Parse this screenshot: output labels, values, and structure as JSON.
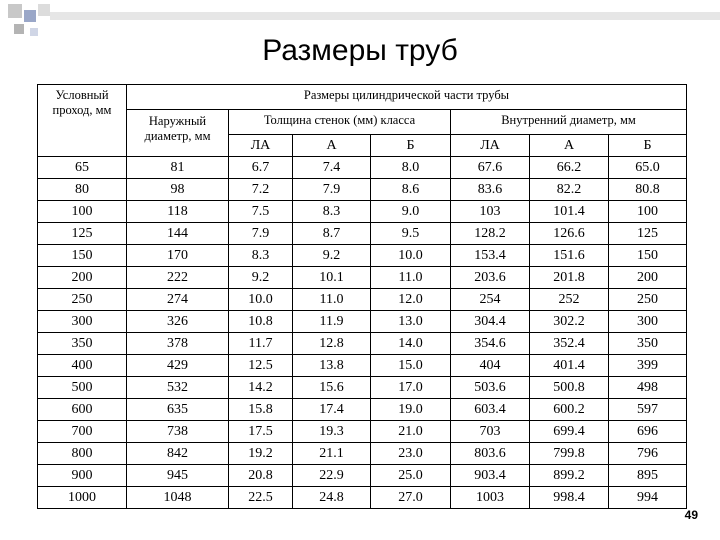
{
  "title": "Размеры труб",
  "table": {
    "header": {
      "nominal": "Условный проход, мм",
      "group": "Размеры цилиндрической части трубы",
      "outer": "Наружный диаметр, мм",
      "wall": "Толщина стенок (мм) класса",
      "inner": "Внутренний диаметр, мм",
      "classes": [
        "ЛА",
        "А",
        "Б",
        "ЛА",
        "А",
        "Б"
      ]
    },
    "rows": [
      [
        "65",
        "81",
        "6.7",
        "7.4",
        "8.0",
        "67.6",
        "66.2",
        "65.0"
      ],
      [
        "80",
        "98",
        "7.2",
        "7.9",
        "8.6",
        "83.6",
        "82.2",
        "80.8"
      ],
      [
        "100",
        "118",
        "7.5",
        "8.3",
        "9.0",
        "103",
        "101.4",
        "100"
      ],
      [
        "125",
        "144",
        "7.9",
        "8.7",
        "9.5",
        "128.2",
        "126.6",
        "125"
      ],
      [
        "150",
        "170",
        "8.3",
        "9.2",
        "10.0",
        "153.4",
        "151.6",
        "150"
      ],
      [
        "200",
        "222",
        "9.2",
        "10.1",
        "11.0",
        "203.6",
        "201.8",
        "200"
      ],
      [
        "250",
        "274",
        "10.0",
        "11.0",
        "12.0",
        "254",
        "252",
        "250"
      ],
      [
        "300",
        "326",
        "10.8",
        "11.9",
        "13.0",
        "304.4",
        "302.2",
        "300"
      ],
      [
        "350",
        "378",
        "11.7",
        "12.8",
        "14.0",
        "354.6",
        "352.4",
        "350"
      ],
      [
        "400",
        "429",
        "12.5",
        "13.8",
        "15.0",
        "404",
        "401.4",
        "399"
      ],
      [
        "500",
        "532",
        "14.2",
        "15.6",
        "17.0",
        "503.6",
        "500.8",
        "498"
      ],
      [
        "600",
        "635",
        "15.8",
        "17.4",
        "19.0",
        "603.4",
        "600.2",
        "597"
      ],
      [
        "700",
        "738",
        "17.5",
        "19.3",
        "21.0",
        "703",
        "699.4",
        "696"
      ],
      [
        "800",
        "842",
        "19.2",
        "21.1",
        "23.0",
        "803.6",
        "799.8",
        "796"
      ],
      [
        "900",
        "945",
        "20.8",
        "22.9",
        "25.0",
        "903.4",
        "899.2",
        "895"
      ],
      [
        "1000",
        "1048",
        "22.5",
        "24.8",
        "27.0",
        "1003",
        "998.4",
        "994"
      ]
    ]
  },
  "page_number": "49"
}
